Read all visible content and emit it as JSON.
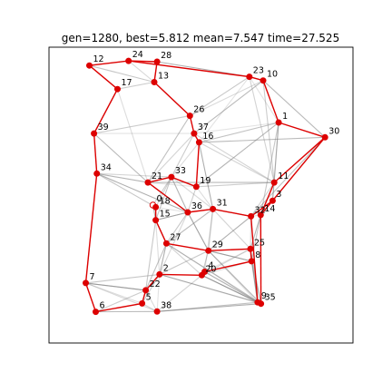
{
  "chart_data": {
    "type": "scatter",
    "title": "gen=1280, best=5.812 mean=7.547 time=27.525",
    "xlabel": "",
    "ylabel": "",
    "xlim": [
      -0.05,
      1.05
    ],
    "ylim": [
      -0.05,
      1.05
    ],
    "axis_ticks": false,
    "grid": false,
    "colors": {
      "route": "#dd0000",
      "node": "#dd0000",
      "pheromone_edge": "#808080",
      "start_node_fill": "#ffffff",
      "frame": "#000000"
    },
    "points": [
      {
        "id": "0",
        "x": 0.326,
        "y": 0.463
      },
      {
        "id": "1",
        "x": 0.781,
        "y": 0.77
      },
      {
        "id": "2",
        "x": 0.35,
        "y": 0.205
      },
      {
        "id": "3",
        "x": 0.759,
        "y": 0.479
      },
      {
        "id": "4",
        "x": 0.513,
        "y": 0.215
      },
      {
        "id": "5",
        "x": 0.287,
        "y": 0.097
      },
      {
        "id": "6",
        "x": 0.119,
        "y": 0.066
      },
      {
        "id": "7",
        "x": 0.083,
        "y": 0.173
      },
      {
        "id": "8",
        "x": 0.683,
        "y": 0.254
      },
      {
        "id": "9",
        "x": 0.705,
        "y": 0.101
      },
      {
        "id": "10",
        "x": 0.725,
        "y": 0.926
      },
      {
        "id": "11",
        "x": 0.765,
        "y": 0.547
      },
      {
        "id": "12",
        "x": 0.096,
        "y": 0.982
      },
      {
        "id": "13",
        "x": 0.331,
        "y": 0.92
      },
      {
        "id": "14",
        "x": 0.716,
        "y": 0.426
      },
      {
        "id": "15",
        "x": 0.336,
        "y": 0.407
      },
      {
        "id": "16",
        "x": 0.493,
        "y": 0.696
      },
      {
        "id": "17",
        "x": 0.198,
        "y": 0.894
      },
      {
        "id": "18",
        "x": 0.336,
        "y": 0.455
      },
      {
        "id": "19",
        "x": 0.483,
        "y": 0.531
      },
      {
        "id": "20",
        "x": 0.503,
        "y": 0.202
      },
      {
        "id": "21",
        "x": 0.308,
        "y": 0.547
      },
      {
        "id": "22",
        "x": 0.3,
        "y": 0.146
      },
      {
        "id": "23",
        "x": 0.675,
        "y": 0.94
      },
      {
        "id": "24",
        "x": 0.238,
        "y": 0.999
      },
      {
        "id": "25",
        "x": 0.679,
        "y": 0.3
      },
      {
        "id": "26",
        "x": 0.46,
        "y": 0.795
      },
      {
        "id": "27",
        "x": 0.375,
        "y": 0.32
      },
      {
        "id": "28",
        "x": 0.341,
        "y": 0.996
      },
      {
        "id": "29",
        "x": 0.527,
        "y": 0.293
      },
      {
        "id": "30",
        "x": 0.949,
        "y": 0.715
      },
      {
        "id": "31",
        "x": 0.543,
        "y": 0.448
      },
      {
        "id": "32",
        "x": 0.681,
        "y": 0.421
      },
      {
        "id": "33",
        "x": 0.393,
        "y": 0.567
      },
      {
        "id": "34",
        "x": 0.123,
        "y": 0.58
      },
      {
        "id": "35",
        "x": 0.717,
        "y": 0.096
      },
      {
        "id": "36",
        "x": 0.452,
        "y": 0.436
      },
      {
        "id": "37",
        "x": 0.475,
        "y": 0.729
      },
      {
        "id": "38",
        "x": 0.341,
        "y": 0.067
      },
      {
        "id": "39",
        "x": 0.113,
        "y": 0.729
      }
    ],
    "start_node": "0",
    "route": [
      "0",
      "18",
      "15",
      "27",
      "29",
      "25",
      "8",
      "4",
      "20",
      "2",
      "22",
      "5",
      "6",
      "7",
      "34",
      "39",
      "17",
      "12",
      "24",
      "28",
      "13",
      "26",
      "37",
      "16",
      "19",
      "33",
      "21",
      "36",
      "31",
      "32",
      "3",
      "30",
      "1",
      "10",
      "23",
      "24"
    ],
    "route_extra": [
      [
        "11",
        "30"
      ],
      [
        "11",
        "14"
      ],
      [
        "14",
        "3"
      ],
      [
        "9",
        "35"
      ],
      [
        "9",
        "32"
      ],
      [
        "35",
        "14"
      ],
      [
        "20",
        "4"
      ]
    ],
    "pheromone_edges": [
      [
        "39",
        "17"
      ],
      [
        "39",
        "21"
      ],
      [
        "39",
        "26"
      ],
      [
        "39",
        "34"
      ],
      [
        "34",
        "21"
      ],
      [
        "34",
        "18"
      ],
      [
        "34",
        "7"
      ],
      [
        "34",
        "36"
      ],
      [
        "21",
        "33"
      ],
      [
        "21",
        "37"
      ],
      [
        "21",
        "19"
      ],
      [
        "21",
        "11"
      ],
      [
        "33",
        "37"
      ],
      [
        "33",
        "16"
      ],
      [
        "33",
        "36"
      ],
      [
        "33",
        "15"
      ],
      [
        "33",
        "31"
      ],
      [
        "16",
        "31"
      ],
      [
        "16",
        "1"
      ],
      [
        "16",
        "11"
      ],
      [
        "16",
        "23"
      ],
      [
        "16",
        "30"
      ],
      [
        "19",
        "11"
      ],
      [
        "19",
        "31"
      ],
      [
        "19",
        "1"
      ],
      [
        "26",
        "23"
      ],
      [
        "26",
        "10"
      ],
      [
        "26",
        "13"
      ],
      [
        "26",
        "21"
      ],
      [
        "37",
        "11"
      ],
      [
        "37",
        "1"
      ],
      [
        "37",
        "10"
      ],
      [
        "17",
        "13"
      ],
      [
        "17",
        "21"
      ],
      [
        "17",
        "39"
      ],
      [
        "12",
        "13"
      ],
      [
        "24",
        "13"
      ],
      [
        "28",
        "23"
      ],
      [
        "28",
        "13"
      ],
      [
        "23",
        "11"
      ],
      [
        "23",
        "1"
      ],
      [
        "10",
        "30"
      ],
      [
        "10",
        "11"
      ],
      [
        "1",
        "11"
      ],
      [
        "1",
        "3"
      ],
      [
        "1",
        "14"
      ],
      [
        "30",
        "3"
      ],
      [
        "30",
        "14"
      ],
      [
        "30",
        "32"
      ],
      [
        "11",
        "32"
      ],
      [
        "11",
        "3"
      ],
      [
        "3",
        "14"
      ],
      [
        "3",
        "32"
      ],
      [
        "14",
        "32"
      ],
      [
        "14",
        "25"
      ],
      [
        "14",
        "8"
      ],
      [
        "32",
        "25"
      ],
      [
        "32",
        "29"
      ],
      [
        "32",
        "31"
      ],
      [
        "31",
        "25"
      ],
      [
        "31",
        "36"
      ],
      [
        "31",
        "27"
      ],
      [
        "31",
        "29"
      ],
      [
        "31",
        "4"
      ],
      [
        "36",
        "29"
      ],
      [
        "36",
        "27"
      ],
      [
        "36",
        "2"
      ],
      [
        "36",
        "15"
      ],
      [
        "18",
        "15"
      ],
      [
        "18",
        "33"
      ],
      [
        "18",
        "36"
      ],
      [
        "0",
        "15"
      ],
      [
        "0",
        "33"
      ],
      [
        "15",
        "2"
      ],
      [
        "15",
        "27"
      ],
      [
        "15",
        "22"
      ],
      [
        "15",
        "36"
      ],
      [
        "27",
        "2"
      ],
      [
        "27",
        "22"
      ],
      [
        "27",
        "20"
      ],
      [
        "27",
        "9"
      ],
      [
        "27",
        "35"
      ],
      [
        "29",
        "20"
      ],
      [
        "29",
        "9"
      ],
      [
        "29",
        "35"
      ],
      [
        "29",
        "8"
      ],
      [
        "29",
        "36"
      ],
      [
        "25",
        "9"
      ],
      [
        "25",
        "35"
      ],
      [
        "25",
        "20"
      ],
      [
        "25",
        "4"
      ],
      [
        "8",
        "9"
      ],
      [
        "8",
        "35"
      ],
      [
        "8",
        "20"
      ],
      [
        "8",
        "29"
      ],
      [
        "4",
        "35"
      ],
      [
        "4",
        "9"
      ],
      [
        "20",
        "9"
      ],
      [
        "20",
        "35"
      ],
      [
        "20",
        "38"
      ],
      [
        "2",
        "38"
      ],
      [
        "2",
        "22"
      ],
      [
        "2",
        "5"
      ],
      [
        "2",
        "35"
      ],
      [
        "2",
        "9"
      ],
      [
        "2",
        "29"
      ],
      [
        "22",
        "38"
      ],
      [
        "22",
        "5"
      ],
      [
        "22",
        "7"
      ],
      [
        "5",
        "38"
      ],
      [
        "5",
        "6"
      ],
      [
        "6",
        "38"
      ],
      [
        "6",
        "22"
      ],
      [
        "7",
        "5"
      ],
      [
        "7",
        "22"
      ],
      [
        "7",
        "2"
      ],
      [
        "7",
        "38"
      ],
      [
        "38",
        "35"
      ],
      [
        "38",
        "9"
      ],
      [
        "34",
        "33"
      ],
      [
        "39",
        "37"
      ],
      [
        "21",
        "36"
      ],
      [
        "19",
        "36"
      ],
      [
        "19",
        "33"
      ],
      [
        "0",
        "18"
      ]
    ]
  }
}
